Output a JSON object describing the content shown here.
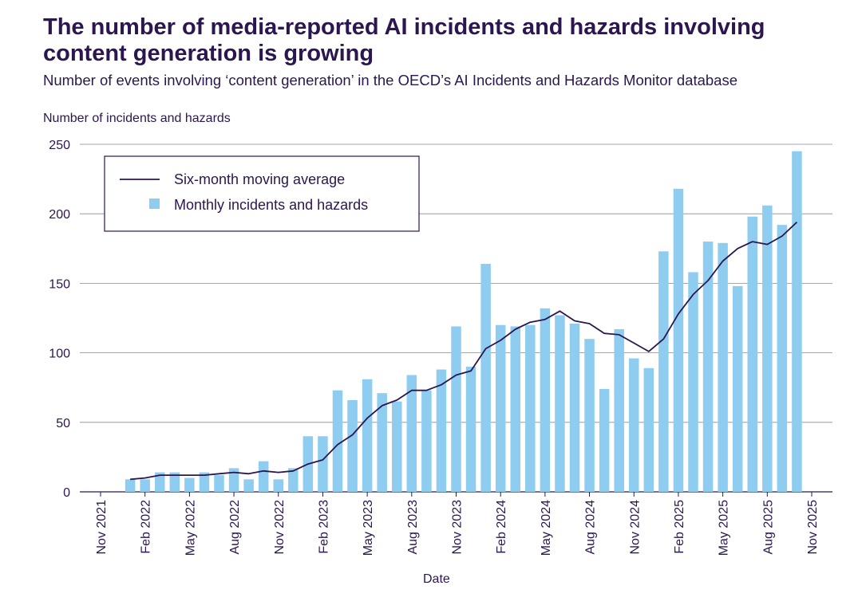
{
  "title": "The number of media-reported AI incidents and hazards involving content generation is growing",
  "subtitle": "Number of events involving ‘content generation’ in the OECD’s AI Incidents and Hazards Monitor database",
  "chart_data": {
    "type": "bar",
    "ylabel": "Number of incidents and hazards",
    "xlabel": "Date",
    "ylim": [
      0,
      250
    ],
    "yticks": [
      0,
      50,
      100,
      150,
      200,
      250
    ],
    "x_start": "Nov 2021",
    "x_end": "Nov 2025",
    "xticks": [
      "Nov 2021",
      "Feb 2022",
      "May 2022",
      "Aug 2022",
      "Nov 2022",
      "Feb 2023",
      "May 2023",
      "Aug 2023",
      "Nov 2023",
      "Feb 2024",
      "May 2024",
      "Aug 2024",
      "Nov 2024",
      "Feb 2025",
      "May 2025",
      "Aug 2025",
      "Nov 2025"
    ],
    "grid": true,
    "legend": "top-left",
    "months": [
      "2022-01",
      "2022-02",
      "2022-03",
      "2022-04",
      "2022-05",
      "2022-06",
      "2022-07",
      "2022-08",
      "2022-09",
      "2022-10",
      "2022-11",
      "2022-12",
      "2023-01",
      "2023-02",
      "2023-03",
      "2023-04",
      "2023-05",
      "2023-06",
      "2023-07",
      "2023-08",
      "2023-09",
      "2023-10",
      "2023-11",
      "2023-12",
      "2024-01",
      "2024-02",
      "2024-03",
      "2024-04",
      "2024-05",
      "2024-06",
      "2024-07",
      "2024-08",
      "2024-09",
      "2024-10",
      "2024-11",
      "2024-12",
      "2025-01",
      "2025-02",
      "2025-03",
      "2025-04",
      "2025-05",
      "2025-06",
      "2025-07",
      "2025-08",
      "2025-09",
      "2025-10"
    ],
    "series": [
      {
        "name": "Monthly incidents and hazards",
        "type": "bar",
        "color": "#8ecdf0",
        "values": [
          9,
          9,
          14,
          14,
          10,
          14,
          12,
          17,
          9,
          22,
          9,
          17,
          40,
          40,
          73,
          66,
          81,
          71,
          65,
          84,
          73,
          88,
          119,
          90,
          164,
          120,
          119,
          120,
          132,
          127,
          121,
          110,
          74,
          117,
          96,
          89,
          173,
          218,
          158,
          180,
          179,
          148,
          198,
          206,
          192,
          245
        ]
      },
      {
        "name": "Six-month moving average",
        "type": "line",
        "color": "#2b1650",
        "values": [
          9,
          10,
          12,
          12,
          12,
          12,
          13,
          14,
          13,
          15,
          14,
          15,
          20,
          23,
          34,
          41,
          53,
          62,
          66,
          73,
          73,
          77,
          84,
          87,
          103,
          109,
          117,
          122,
          124,
          130,
          123,
          121,
          114,
          113,
          107,
          101,
          110,
          128,
          142,
          152,
          166,
          175,
          180,
          178,
          184,
          194
        ]
      }
    ]
  }
}
